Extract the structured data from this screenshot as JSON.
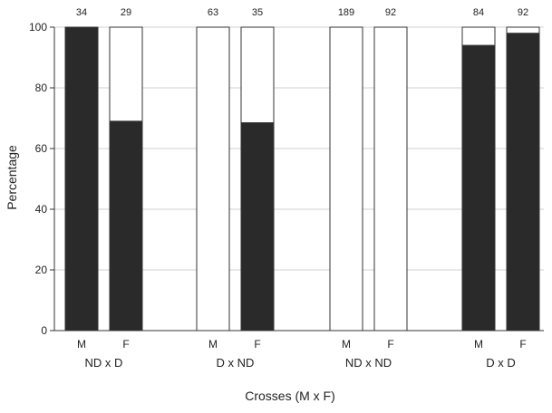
{
  "chart_data": {
    "type": "bar",
    "stacked_to": 100,
    "xlabel": "Crosses (M x F)",
    "ylabel": "Percentage",
    "ylim": [
      0,
      100
    ],
    "yticks": [
      0,
      20,
      40,
      60,
      80,
      100
    ],
    "grid": true,
    "groups": [
      {
        "label": "ND x D",
        "bars": [
          {
            "sex": "M",
            "n": "34",
            "value": 100
          },
          {
            "sex": "F",
            "n": "29",
            "value": 69
          }
        ]
      },
      {
        "label": "D x ND",
        "bars": [
          {
            "sex": "M",
            "n": "63",
            "value": 0
          },
          {
            "sex": "F",
            "n": "35",
            "value": 68.5
          }
        ]
      },
      {
        "label": "ND x ND",
        "bars": [
          {
            "sex": "M",
            "n": "189",
            "value": 0
          },
          {
            "sex": "F",
            "n": "92",
            "value": 0
          }
        ]
      },
      {
        "label": "D x D",
        "bars": [
          {
            "sex": "M",
            "n": "84",
            "value": 94
          },
          {
            "sex": "F",
            "n": "92",
            "value": 98
          }
        ]
      }
    ],
    "colors": {
      "filled": "#2a2a2a",
      "empty": "#ffffff",
      "stroke": "#333333",
      "grid": "#d0d0d0"
    }
  }
}
